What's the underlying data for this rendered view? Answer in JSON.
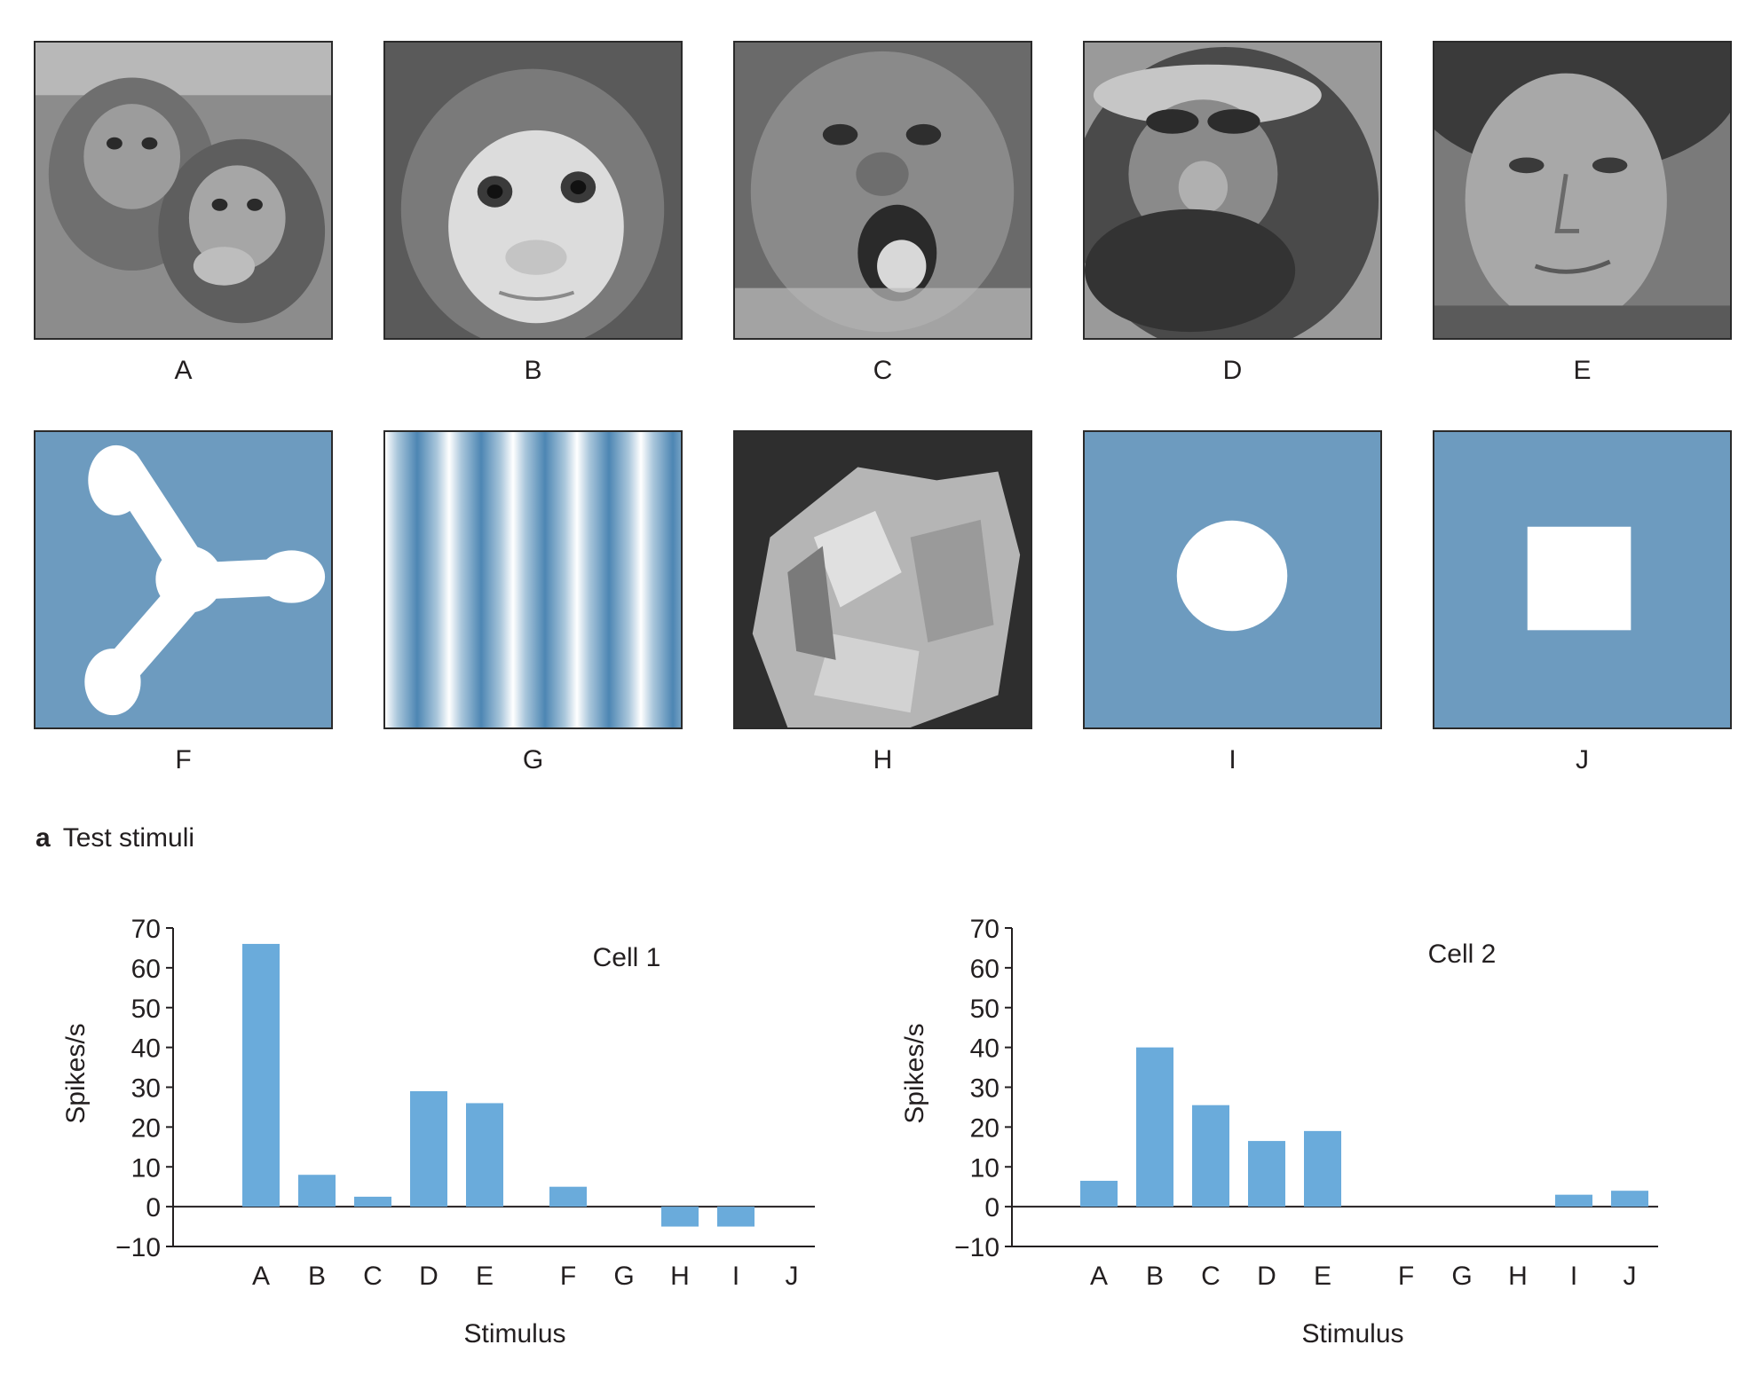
{
  "stimuli": {
    "row1": [
      {
        "label": "A",
        "content": "two infant monkeys photo"
      },
      {
        "label": "B",
        "content": "monkey face photo"
      },
      {
        "label": "C",
        "content": "open-mouth monkey photo"
      },
      {
        "label": "D",
        "content": "monkey face photo"
      },
      {
        "label": "E",
        "content": "human face photo"
      }
    ],
    "row2": [
      {
        "label": "F",
        "content": "three-lobed shape"
      },
      {
        "label": "G",
        "content": "vertical grating"
      },
      {
        "label": "H",
        "content": "crumpled cloth photo"
      },
      {
        "label": "I",
        "content": "circle"
      },
      {
        "label": "J",
        "content": "square"
      }
    ]
  },
  "section": {
    "letter": "a",
    "title": "Test stimuli"
  },
  "colors": {
    "bar": "#6aabdb",
    "stimulus_bg": "#6d9bbf",
    "axis": "#231f20"
  },
  "chart_data": [
    {
      "type": "bar",
      "title": "Cell 1",
      "xlabel": "Stimulus",
      "ylabel": "Spikes/s",
      "ylim": [
        -10,
        70
      ],
      "yticks": [
        70,
        60,
        50,
        40,
        30,
        20,
        10,
        0,
        -10
      ],
      "ytick_labels": [
        "70",
        "60",
        "50",
        "40",
        "30",
        "20",
        "10",
        "0",
        "−10"
      ],
      "categories": [
        "A",
        "B",
        "C",
        "D",
        "E",
        "F",
        "G",
        "H",
        "I",
        "J"
      ],
      "values": [
        66,
        8,
        2.5,
        29,
        26,
        5,
        0,
        -5,
        -5,
        0
      ]
    },
    {
      "type": "bar",
      "title": "Cell 2",
      "xlabel": "Stimulus",
      "ylabel": "Spikes/s",
      "ylim": [
        -10,
        70
      ],
      "yticks": [
        70,
        60,
        50,
        40,
        30,
        20,
        10,
        0,
        -10
      ],
      "ytick_labels": [
        "70",
        "60",
        "50",
        "40",
        "30",
        "20",
        "10",
        "0",
        "−10"
      ],
      "categories": [
        "A",
        "B",
        "C",
        "D",
        "E",
        "F",
        "G",
        "H",
        "I",
        "J"
      ],
      "values": [
        6.5,
        40,
        25.5,
        16.5,
        19,
        0,
        0,
        0,
        3,
        4
      ]
    }
  ]
}
